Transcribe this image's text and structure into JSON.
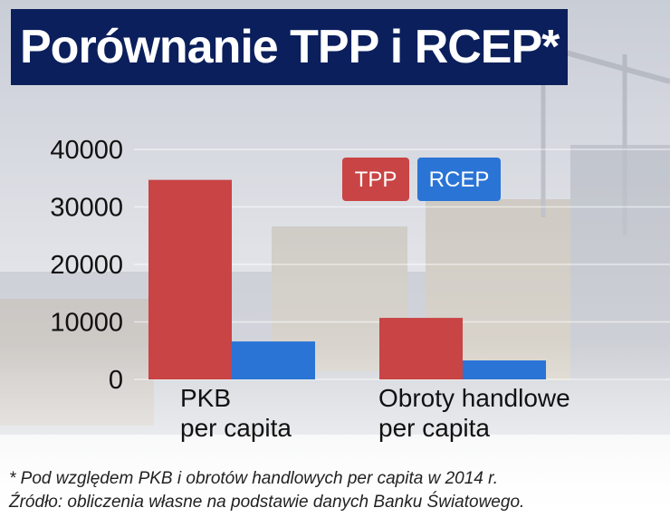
{
  "title": "Porównanie TPP i RCEP*",
  "footnote": {
    "line1": "* Pod względem PKB i obrotów handlowych per capita w 2014 r.",
    "line2": "Źródło: obliczenia własne na podstawie danych Banku Światowego."
  },
  "colors": {
    "title_bg": "#0b1f5c",
    "tpp": "#c94444",
    "rcep": "#2a74d6"
  },
  "chart_data": {
    "type": "bar",
    "title": "Porównanie TPP i RCEP*",
    "categories": [
      "PKB\nper capita",
      "Obroty handlowe\nper capita"
    ],
    "series": [
      {
        "name": "TPP",
        "values": [
          34700,
          10700
        ],
        "color": "#c94444"
      },
      {
        "name": "RCEP",
        "values": [
          6600,
          3300
        ],
        "color": "#2a74d6"
      }
    ],
    "yticks": [
      "40000",
      "30000",
      "20000",
      "10000",
      "0"
    ],
    "ylim": [
      0,
      40000
    ],
    "xlabel": "",
    "ylabel": "",
    "grid": true,
    "legend": "top-right"
  }
}
